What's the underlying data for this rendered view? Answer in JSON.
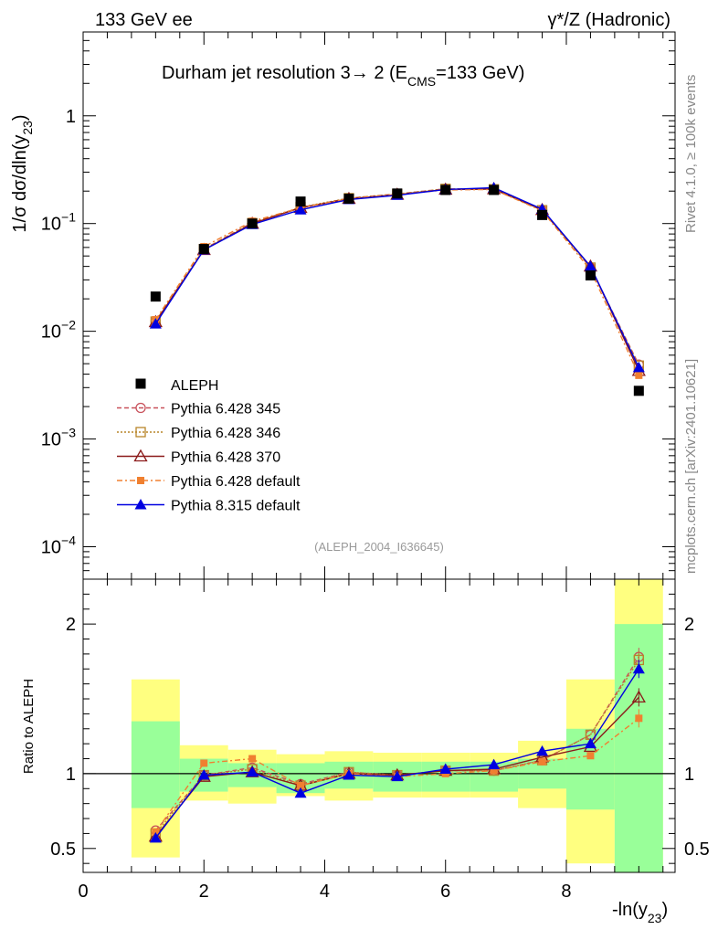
{
  "chart_data": [
    {
      "type": "line",
      "panel": "main",
      "header_left": "133 GeV ee",
      "header_right": "γ*/Z (Hadronic)",
      "title": "Durham jet resolution 3→ 2 (E",
      "title_sub": "CMS",
      "title_tail": "=133 GeV)",
      "ylabel": "1/σ dσ/dln(y",
      "ylabel_sub": "23",
      "ylabel_tail": ")",
      "yscale": "log",
      "ylim": [
        5e-05,
        6
      ],
      "xlim": [
        0,
        9.8
      ],
      "yticks": [
        {
          "value": 1,
          "label": "1",
          "exp": ""
        },
        {
          "value": 0.1,
          "label": "10",
          "exp": "−1"
        },
        {
          "value": 0.01,
          "label": "10",
          "exp": "−2"
        },
        {
          "value": 0.001,
          "label": "10",
          "exp": "−3"
        },
        {
          "value": 0.0001,
          "label": "10",
          "exp": "−4"
        }
      ],
      "analysis_tag": "(ALEPH_2004_I636645)",
      "x": [
        1.2,
        2.0,
        2.8,
        3.6,
        4.4,
        5.2,
        6.0,
        6.8,
        7.6,
        8.4,
        9.2
      ],
      "data": {
        "name": "ALEPH",
        "values": [
          0.021,
          0.058,
          0.1,
          0.16,
          0.17,
          0.19,
          0.205,
          0.205,
          0.12,
          0.033,
          0.0028
        ]
      },
      "series": [
        {
          "name": "Pythia 6.428 345",
          "color": "#c8505a",
          "marker": "open-circle",
          "dash": "5,3",
          "values": [
            0.0124,
            0.058,
            0.102,
            0.14,
            0.172,
            0.188,
            0.21,
            0.208,
            0.133,
            0.039,
            0.0049
          ]
        },
        {
          "name": "Pythia 6.428 346",
          "color": "#b8862a",
          "marker": "open-square",
          "dash": "2,2",
          "values": [
            0.0123,
            0.058,
            0.101,
            0.142,
            0.172,
            0.188,
            0.21,
            0.208,
            0.133,
            0.039,
            0.0048
          ]
        },
        {
          "name": "Pythia 6.428 370",
          "color": "#8b1a1a",
          "marker": "open-triangle",
          "dash": "",
          "values": [
            0.0122,
            0.057,
            0.1,
            0.14,
            0.17,
            0.186,
            0.207,
            0.209,
            0.134,
            0.04,
            0.0043
          ]
        },
        {
          "name": "Pythia 6.428 default",
          "color": "#f08030",
          "marker": "filled-square",
          "dash": "6,3,2,3",
          "values": [
            0.0128,
            0.061,
            0.105,
            0.14,
            0.17,
            0.186,
            0.205,
            0.207,
            0.131,
            0.037,
            0.0039
          ]
        },
        {
          "name": "Pythia 8.315 default",
          "color": "#0000e0",
          "marker": "filled-triangle",
          "dash": "",
          "values": [
            0.0117,
            0.057,
            0.098,
            0.134,
            0.167,
            0.183,
            0.207,
            0.215,
            0.136,
            0.04,
            0.0046
          ]
        }
      ],
      "side_label_top": "Rivet 4.1.0, ≥ 100k events",
      "side_label_bottom": "mcplots.cern.ch [arXiv:2401.10621]"
    },
    {
      "type": "line",
      "panel": "ratio",
      "ylabel": "Ratio to ALEPH",
      "xlabel": "-ln(y",
      "xlabel_sub": "23",
      "xlabel_tail": ")",
      "ylim": [
        0.34,
        2.3
      ],
      "xlim": [
        0,
        9.8
      ],
      "xticks": [
        0,
        2,
        4,
        6,
        8
      ],
      "yticks": [
        0.5,
        1,
        2
      ],
      "reference": 1,
      "bins": [
        {
          "x0": 0.8,
          "x1": 1.6,
          "green": [
            0.77,
            1.35
          ],
          "yellow": [
            0.44,
            1.63
          ]
        },
        {
          "x0": 1.6,
          "x1": 2.4,
          "green": [
            0.88,
            1.1
          ],
          "yellow": [
            0.82,
            1.19
          ]
        },
        {
          "x0": 2.4,
          "x1": 3.2,
          "green": [
            0.91,
            1.07
          ],
          "yellow": [
            0.8,
            1.16
          ]
        },
        {
          "x0": 3.2,
          "x1": 4.0,
          "green": [
            0.87,
            1.07
          ],
          "yellow": [
            0.85,
            1.13
          ]
        },
        {
          "x0": 4.0,
          "x1": 4.8,
          "green": [
            0.9,
            1.08
          ],
          "yellow": [
            0.82,
            1.15
          ]
        },
        {
          "x0": 4.8,
          "x1": 5.6,
          "green": [
            0.88,
            1.08
          ],
          "yellow": [
            0.84,
            1.14
          ]
        },
        {
          "x0": 5.6,
          "x1": 6.4,
          "green": [
            0.88,
            1.08
          ],
          "yellow": [
            0.84,
            1.14
          ]
        },
        {
          "x0": 6.4,
          "x1": 7.2,
          "green": [
            0.88,
            1.08
          ],
          "yellow": [
            0.84,
            1.14
          ]
        },
        {
          "x0": 7.2,
          "x1": 8.0,
          "green": [
            0.9,
            1.1
          ],
          "yellow": [
            0.77,
            1.22
          ]
        },
        {
          "x0": 8.0,
          "x1": 8.8,
          "green": [
            0.76,
            1.3
          ],
          "yellow": [
            0.4,
            1.63
          ]
        },
        {
          "x0": 8.8,
          "x1": 9.6,
          "green": [
            0.34,
            2.0
          ],
          "yellow": [
            0.34,
            2.3
          ]
        }
      ],
      "x": [
        1.2,
        2.0,
        2.8,
        3.6,
        4.4,
        5.2,
        6.0,
        6.8,
        7.6,
        8.4,
        9.2
      ],
      "series": [
        {
          "name": "Pythia 6.428 345",
          "values": [
            0.62,
            0.99,
            1.04,
            0.93,
            1.01,
            0.99,
            1.02,
            1.02,
            1.09,
            1.26,
            1.78
          ]
        },
        {
          "name": "Pythia 6.428 346",
          "values": [
            0.6,
            0.99,
            1.03,
            0.92,
            1.01,
            0.99,
            1.02,
            1.02,
            1.09,
            1.26,
            1.76
          ]
        },
        {
          "name": "Pythia 6.428 370",
          "values": [
            0.58,
            0.98,
            1.01,
            0.92,
            1.0,
            0.99,
            1.02,
            1.03,
            1.11,
            1.18,
            1.51
          ]
        },
        {
          "name": "Pythia 6.428 default",
          "values": [
            0.61,
            1.07,
            1.1,
            0.92,
            1.0,
            0.98,
            1.0,
            1.02,
            1.08,
            1.12,
            1.37
          ]
        },
        {
          "name": "Pythia 8.315 default",
          "values": [
            0.57,
            0.99,
            1.01,
            0.87,
            0.99,
            0.98,
            1.03,
            1.06,
            1.15,
            1.2,
            1.7
          ]
        }
      ]
    }
  ]
}
